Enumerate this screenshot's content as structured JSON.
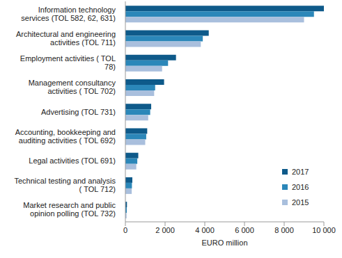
{
  "chart_data": {
    "type": "bar",
    "orientation": "horizontal",
    "categories": [
      "Information technology services (TOL 582, 62, 631)",
      "Architectural and engineering activities (TOL 711)",
      "Employment activities ( TOL 78)",
      "Management consultancy activities ( TOL 702)",
      "Advertising (TOL 731)",
      "Accounting, bookkeeping and auditing activities ( TOL 692)",
      "Legal activities (TOL 691)",
      "Technical testing and analysis ( TOL 712)",
      "Market research and public opinion polling (TOL 732)"
    ],
    "series": [
      {
        "name": "2017",
        "color": "#0e5a8a",
        "values": [
          10000,
          4200,
          2550,
          1950,
          1300,
          1100,
          650,
          350,
          80
        ]
      },
      {
        "name": "2016",
        "color": "#2b87b9",
        "values": [
          9500,
          3900,
          2150,
          1500,
          1250,
          1050,
          600,
          330,
          70
        ]
      },
      {
        "name": "2015",
        "color": "#a9bfdd",
        "values": [
          9000,
          3800,
          1850,
          1450,
          1150,
          1000,
          550,
          320,
          60
        ]
      }
    ],
    "x_label": "EURO million",
    "xlim": [
      0,
      10000
    ],
    "xticks": [
      0,
      {
        "value": 2000,
        "label": "2 000"
      },
      {
        "value": 4000,
        "label": "4 000"
      },
      {
        "value": 6000,
        "label": "6 000"
      },
      {
        "value": 8000,
        "label": "8 000"
      },
      {
        "value": 10000,
        "label": "10 000"
      }
    ],
    "legend": "bottom right",
    "grid": false
  }
}
